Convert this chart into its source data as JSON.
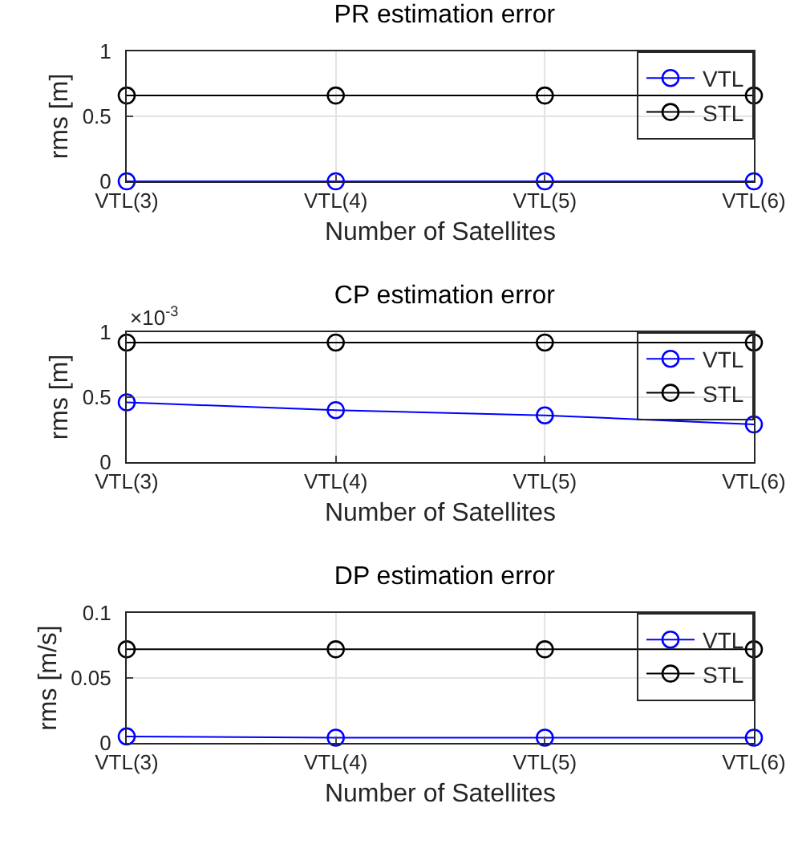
{
  "chart_data": [
    {
      "type": "line",
      "title": "PR estimation error",
      "xlabel": "Number of Satellites",
      "ylabel": "rms [m]",
      "categories": [
        "VTL(3)",
        "VTL(4)",
        "VTL(5)",
        "VTL(6)"
      ],
      "series": [
        {
          "name": "VTL",
          "color": "#0000ff",
          "values": [
            0,
            0,
            0,
            0
          ]
        },
        {
          "name": "STL",
          "color": "#000000",
          "values": [
            0.66,
            0.66,
            0.66,
            0.66
          ]
        }
      ],
      "ylim": [
        0,
        1
      ],
      "yticks": [
        0,
        0.5,
        1
      ],
      "grid": true,
      "legend": "top right",
      "marker": "circle",
      "line_style": "solid"
    },
    {
      "type": "line",
      "title": "CP estimation error",
      "xlabel": "Number of Satellites",
      "ylabel": "rms [m]",
      "annotations": [
        "×10$^{-3}$"
      ],
      "categories": [
        "VTL(3)",
        "VTL(4)",
        "VTL(5)",
        "VTL(6)"
      ],
      "series": [
        {
          "name": "VTL",
          "color": "#0000ff",
          "values": [
            0.46,
            0.4,
            0.36,
            0.29
          ]
        },
        {
          "name": "STL",
          "color": "#000000",
          "values": [
            0.92,
            0.92,
            0.92,
            0.92
          ]
        }
      ],
      "ylim": [
        0,
        1
      ],
      "yticks": [
        0,
        0.5,
        1
      ],
      "grid": true,
      "legend": "top right",
      "marker": "circle",
      "line_style": "solid"
    },
    {
      "type": "line",
      "title": "DP estimation error",
      "xlabel": "Number of Satellites",
      "ylabel": "rms [m/s]",
      "categories": [
        "VTL(3)",
        "VTL(4)",
        "VTL(5)",
        "VTL(6)"
      ],
      "series": [
        {
          "name": "VTL",
          "color": "#0000ff",
          "values": [
            0.005,
            0.004,
            0.004,
            0.004
          ]
        },
        {
          "name": "STL",
          "color": "#000000",
          "values": [
            0.072,
            0.072,
            0.072,
            0.072
          ]
        }
      ],
      "ylim": [
        0,
        0.1
      ],
      "yticks": [
        0,
        0.05,
        0.1
      ],
      "grid": true,
      "legend": "top right",
      "marker": "circle",
      "line_style": "solid"
    }
  ]
}
